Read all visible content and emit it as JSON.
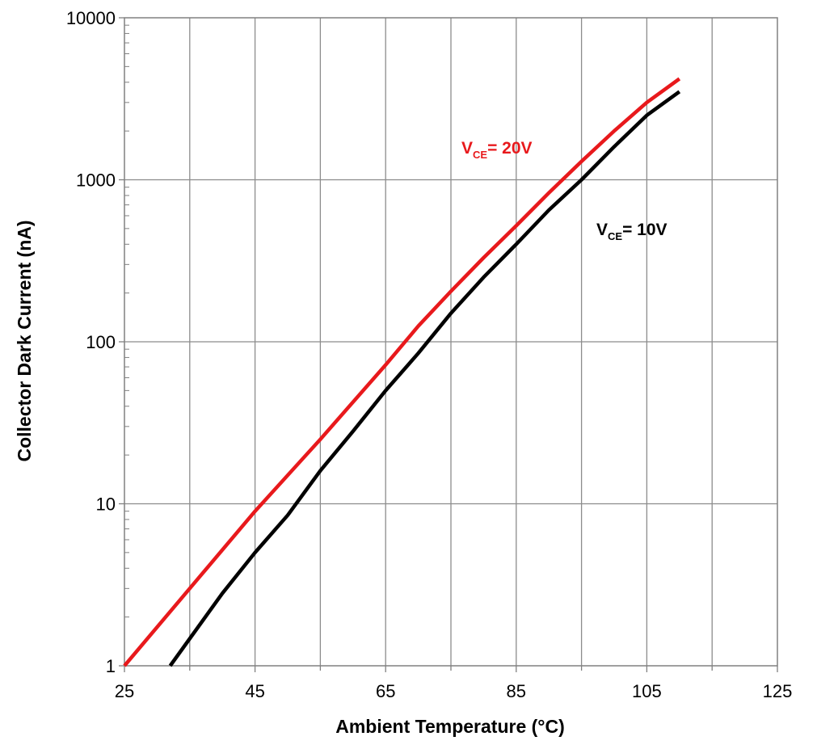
{
  "chart_data": {
    "type": "line",
    "xlabel": "Ambient Temperature (°C)",
    "ylabel": "Collector Dark Current (nA)",
    "xlim": [
      25,
      125
    ],
    "ylim": [
      1,
      10000
    ],
    "yscale": "log",
    "grid": true,
    "x_ticks": [
      "25",
      "45",
      "65",
      "85",
      "105",
      "125"
    ],
    "y_ticks": [
      "1",
      "10",
      "100",
      "1000",
      "10000"
    ],
    "series": [
      {
        "name": "VCE= 20V",
        "label_main": "V",
        "label_sub": "CE",
        "label_rest": "= 20V",
        "color": "#e8191c",
        "x": [
          25,
          35,
          45,
          55,
          65,
          70,
          75,
          80,
          85,
          90,
          95,
          100,
          105,
          110
        ],
        "y": [
          1,
          3,
          9,
          25,
          72,
          125,
          205,
          330,
          520,
          830,
          1300,
          2000,
          3000,
          4200
        ]
      },
      {
        "name": "VCE= 10V",
        "label_main": "V",
        "label_sub": "CE",
        "label_rest": "= 10V",
        "color": "#000000",
        "x": [
          32,
          40,
          45,
          50,
          55,
          60,
          65,
          70,
          75,
          80,
          85,
          90,
          95,
          100,
          105,
          110
        ],
        "y": [
          1,
          2.8,
          5,
          8.5,
          16,
          28,
          50,
          85,
          150,
          250,
          400,
          650,
          1000,
          1600,
          2500,
          3500
        ]
      }
    ]
  }
}
